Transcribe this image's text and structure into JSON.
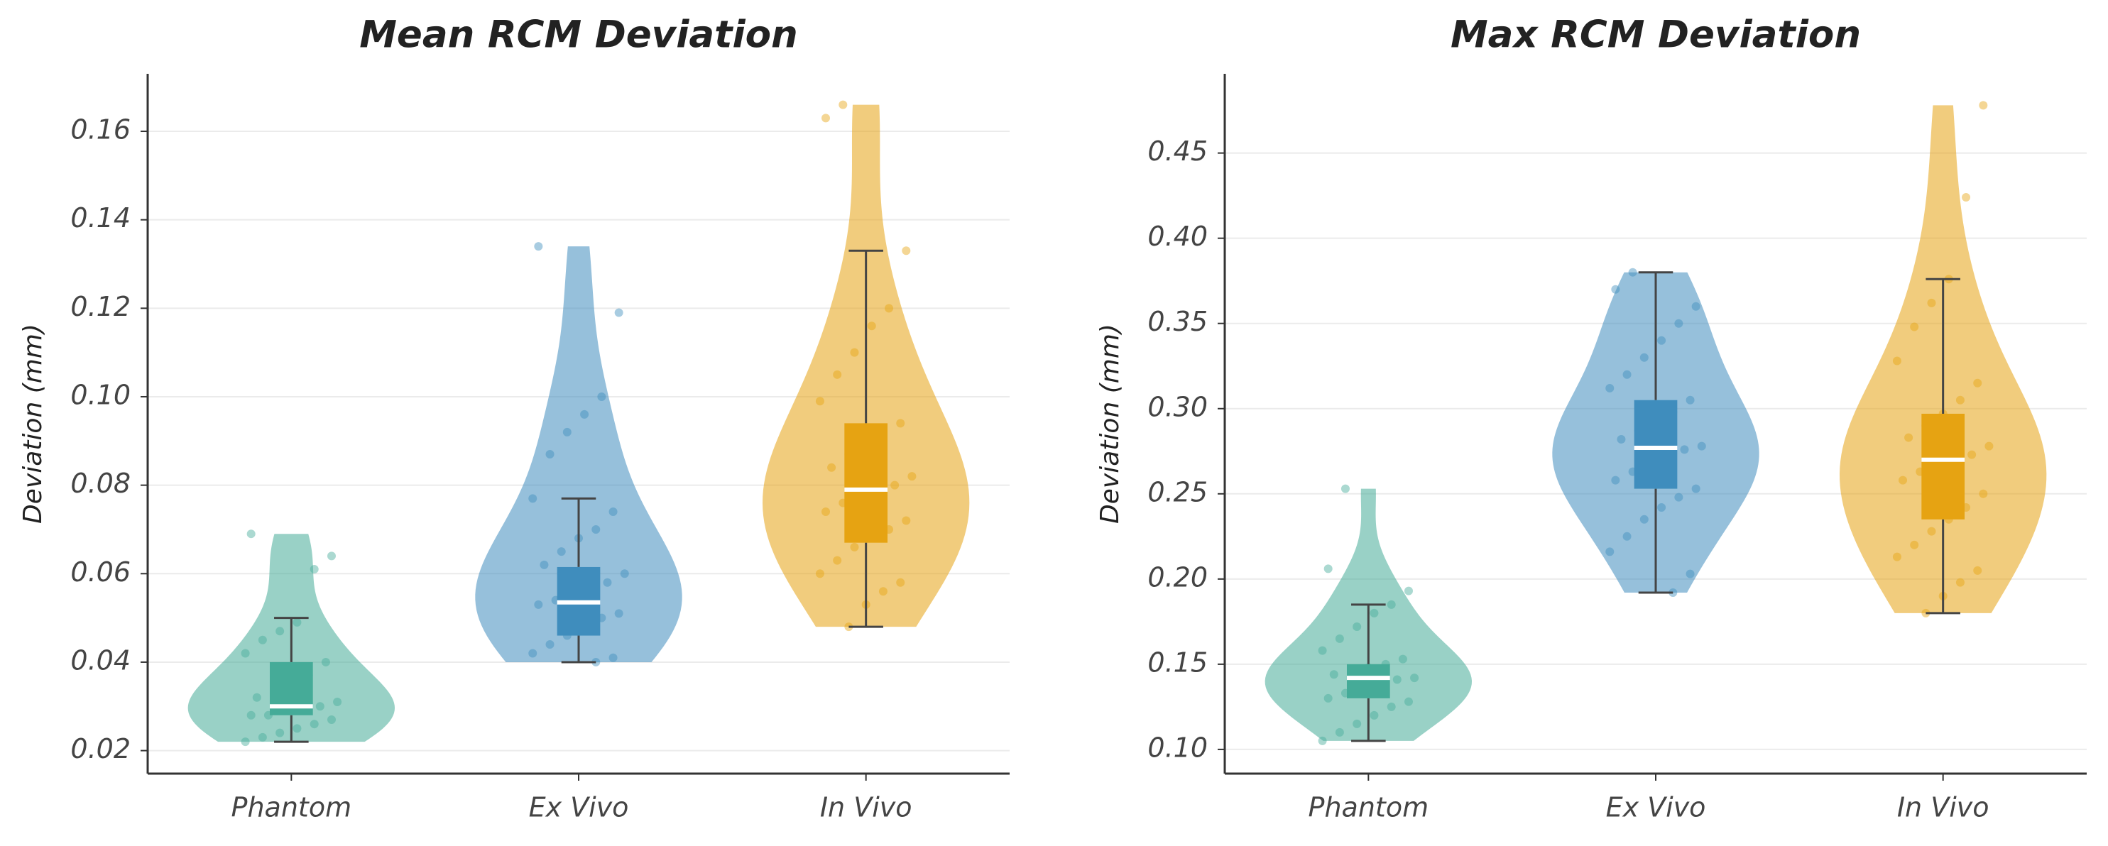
{
  "chart_data": [
    {
      "type": "violin",
      "title": "Mean RCM Deviation",
      "ylabel": "Deviation (mm)",
      "categories": [
        "Phantom",
        "Ex Vivo",
        "In Vivo"
      ],
      "colors": [
        "#45ab98",
        "#3f8dbd",
        "#e6a312"
      ],
      "ylim": [
        0.0148,
        0.173
      ],
      "yticks": [
        0.02,
        0.04,
        0.06,
        0.08,
        {
          "value": 0.1,
          "label": "0.10"
        },
        0.12,
        0.14,
        0.16
      ],
      "grid": true,
      "groups": [
        {
          "points": [
            0.022,
            0.023,
            0.024,
            0.025,
            0.026,
            0.027,
            0.028,
            0.028,
            0.029,
            0.03,
            0.03,
            0.031,
            0.032,
            0.033,
            0.035,
            0.037,
            0.04,
            0.042,
            0.045,
            0.047,
            0.049,
            0.061,
            0.064,
            0.069
          ],
          "whisker_low": 0.022,
          "q1": 0.028,
          "median": 0.03,
          "q3": 0.04,
          "whisker_high": 0.05
        },
        {
          "points": [
            0.04,
            0.041,
            0.042,
            0.044,
            0.046,
            0.048,
            0.05,
            0.051,
            0.053,
            0.054,
            0.055,
            0.056,
            0.058,
            0.06,
            0.062,
            0.065,
            0.068,
            0.07,
            0.074,
            0.077,
            0.087,
            0.092,
            0.096,
            0.1,
            0.119,
            0.134
          ],
          "whisker_low": 0.04,
          "q1": 0.046,
          "median": 0.0535,
          "q3": 0.0615,
          "whisker_high": 0.077
        },
        {
          "points": [
            0.048,
            0.053,
            0.056,
            0.058,
            0.06,
            0.063,
            0.066,
            0.068,
            0.07,
            0.072,
            0.074,
            0.076,
            0.078,
            0.079,
            0.08,
            0.082,
            0.084,
            0.087,
            0.09,
            0.092,
            0.094,
            0.099,
            0.105,
            0.11,
            0.116,
            0.12,
            0.133,
            0.163,
            0.166
          ],
          "whisker_low": 0.048,
          "q1": 0.067,
          "median": 0.079,
          "q3": 0.094,
          "whisker_high": 0.133
        }
      ]
    },
    {
      "type": "violin",
      "title": "Max RCM Deviation",
      "ylabel": "Deviation (mm)",
      "categories": [
        "Phantom",
        "Ex Vivo",
        "In Vivo"
      ],
      "colors": [
        "#45ab98",
        "#3f8dbd",
        "#e6a312"
      ],
      "ylim": [
        0.0858,
        0.4965
      ],
      "yticks": [
        {
          "value": 0.1,
          "label": "0.10"
        },
        0.15,
        {
          "value": 0.2,
          "label": "0.20"
        },
        0.25,
        {
          "value": 0.3,
          "label": "0.30"
        },
        0.35,
        {
          "value": 0.4,
          "label": "0.40"
        },
        0.45
      ],
      "grid": true,
      "groups": [
        {
          "points": [
            0.105,
            0.11,
            0.115,
            0.12,
            0.125,
            0.128,
            0.13,
            0.133,
            0.136,
            0.139,
            0.141,
            0.142,
            0.144,
            0.146,
            0.148,
            0.15,
            0.153,
            0.158,
            0.165,
            0.172,
            0.18,
            0.185,
            0.193,
            0.206,
            0.253
          ],
          "whisker_low": 0.105,
          "q1": 0.13,
          "median": 0.142,
          "q3": 0.15,
          "whisker_high": 0.185
        },
        {
          "points": [
            0.192,
            0.203,
            0.216,
            0.225,
            0.235,
            0.242,
            0.248,
            0.253,
            0.258,
            0.263,
            0.268,
            0.272,
            0.276,
            0.278,
            0.282,
            0.287,
            0.292,
            0.298,
            0.305,
            0.312,
            0.32,
            0.33,
            0.34,
            0.35,
            0.36,
            0.37,
            0.38
          ],
          "whisker_low": 0.192,
          "q1": 0.253,
          "median": 0.277,
          "q3": 0.305,
          "whisker_high": 0.38
        },
        {
          "points": [
            0.18,
            0.19,
            0.198,
            0.205,
            0.213,
            0.22,
            0.228,
            0.235,
            0.242,
            0.25,
            0.258,
            0.263,
            0.268,
            0.27,
            0.273,
            0.278,
            0.283,
            0.29,
            0.297,
            0.305,
            0.315,
            0.328,
            0.348,
            0.362,
            0.376,
            0.424,
            0.478
          ],
          "whisker_low": 0.18,
          "q1": 0.235,
          "median": 0.27,
          "q3": 0.297,
          "whisker_high": 0.376
        }
      ]
    }
  ]
}
